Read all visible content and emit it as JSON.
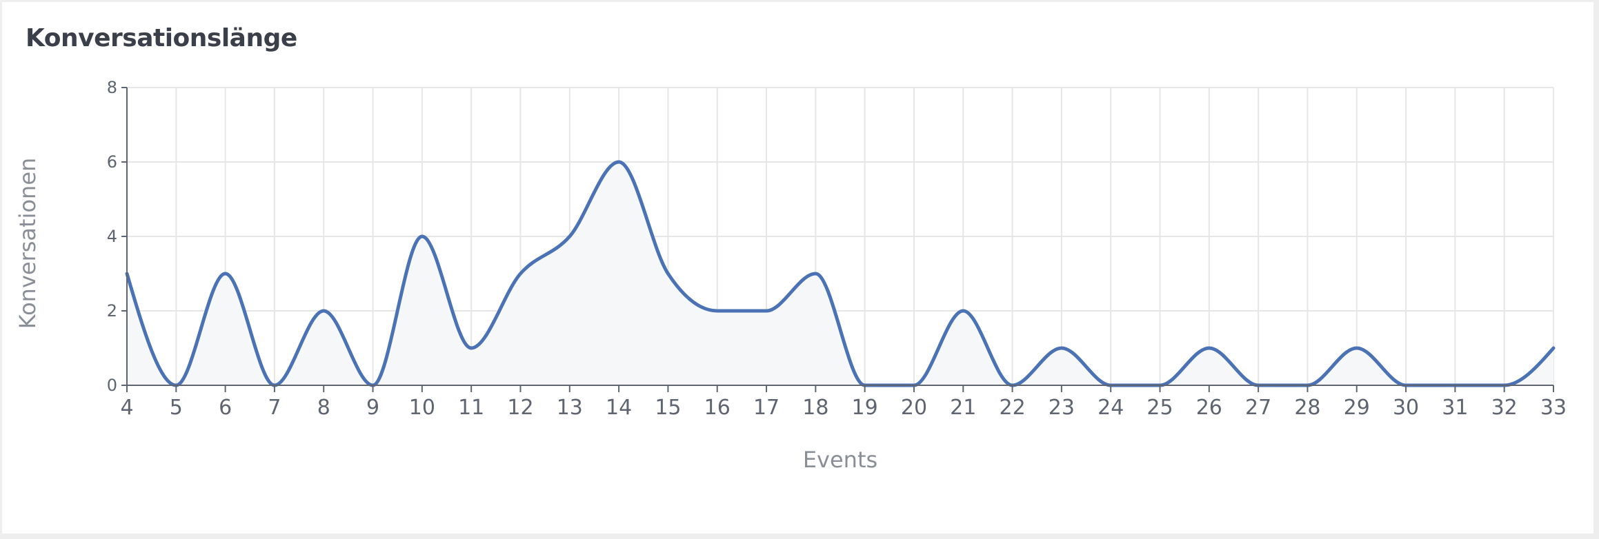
{
  "chart_data": {
    "type": "area",
    "title": "Konversationslänge",
    "xlabel": "Events",
    "ylabel": "Konversationen",
    "x": [
      4,
      5,
      6,
      7,
      8,
      9,
      10,
      11,
      12,
      13,
      14,
      15,
      16,
      17,
      18,
      19,
      20,
      21,
      22,
      23,
      24,
      25,
      26,
      27,
      28,
      29,
      30,
      31,
      32,
      33
    ],
    "series": [
      {
        "values": [
          3,
          0,
          3,
          0,
          2,
          0,
          4,
          1,
          3,
          4,
          6,
          3,
          2,
          2,
          3,
          0,
          0,
          2,
          0,
          1,
          0,
          0,
          1,
          0,
          0,
          1,
          0,
          0,
          0,
          1
        ]
      }
    ],
    "xlim": [
      4,
      33
    ],
    "ylim": [
      0,
      8
    ],
    "yticks": [
      0,
      2,
      4,
      6,
      8
    ],
    "grid": true,
    "colors": {
      "line": "#4a72b4",
      "fill": "#f6f7f9",
      "grid": "#e6e6e6",
      "axis": "#5f6570"
    }
  }
}
